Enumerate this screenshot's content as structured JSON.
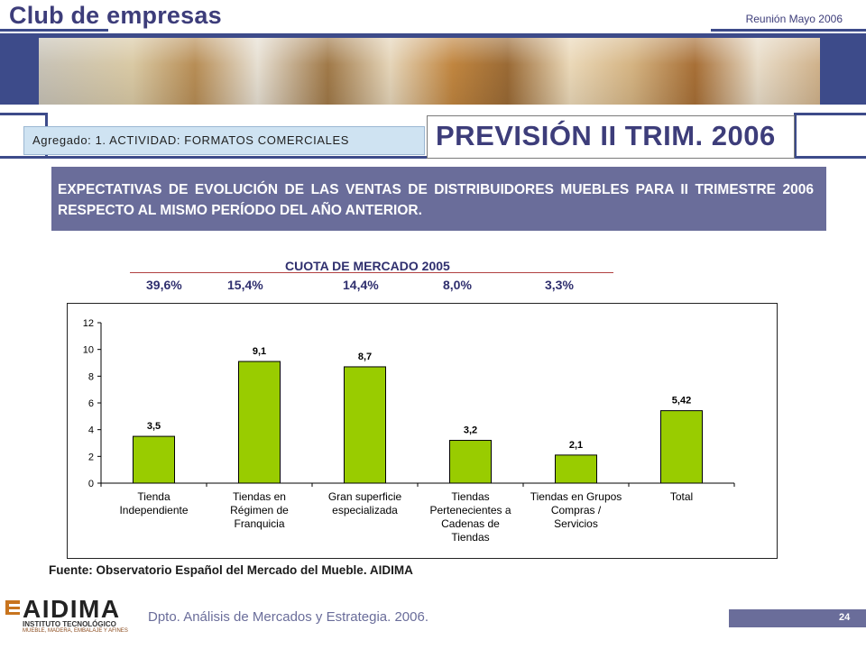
{
  "header": {
    "brand": "Club de empresas",
    "meeting": "Reunión Mayo 2006"
  },
  "band": {
    "aggregate": "Agregado: 1. ACTIVIDAD: FORMATOS COMERCIALES",
    "forecast_title": "PREVISIÓN II TRIM. 2006"
  },
  "expectations_text": "EXPECTATIVAS DE EVOLUCIÓN DE LAS VENTAS DE DISTRIBUIDORES MUEBLES PARA II TRIMESTRE 2006 RESPECTO AL MISMO PERÍODO DEL AÑO ANTERIOR.",
  "market_share": {
    "title": "CUOTA DE MERCADO 2005",
    "values": [
      "39,6%",
      "15,4%",
      "14,4%",
      "8,0%",
      "3,3%"
    ]
  },
  "chart_data": {
    "type": "bar",
    "categories": [
      [
        "Tienda",
        "Independiente"
      ],
      [
        "Tiendas en",
        "Régimen de",
        "Franquicia"
      ],
      [
        "Gran superficie",
        "especializada"
      ],
      [
        "Tiendas",
        "Pertenecientes a",
        "Cadenas de",
        "Tiendas"
      ],
      [
        "Tiendas en Grupos",
        "Compras /",
        "Servicios"
      ],
      [
        "Total"
      ]
    ],
    "values": [
      3.5,
      9.1,
      8.7,
      3.2,
      2.1,
      5.42
    ],
    "data_labels": [
      "3,5",
      "9,1",
      "8,7",
      "3,2",
      "2,1",
      "5,42"
    ],
    "yticks": [
      "0",
      "2",
      "4",
      "6",
      "8",
      "10",
      "12"
    ],
    "ylim": [
      0,
      12
    ],
    "bar_color": "#99cc00",
    "grid": false,
    "legend": "none"
  },
  "source": "Fuente: Observatorio Español del Mercado del Mueble. AIDIMA",
  "footer": {
    "logo": "AIDIMA",
    "logo_sub": "INSTITUTO TECNOLÓGICO",
    "logo_sub2": "MUEBLE, MADERA, EMBALAJE Y AFINES",
    "department": "Dpto. Análisis de Mercados y Estrategia. 2006.",
    "page": "24"
  }
}
